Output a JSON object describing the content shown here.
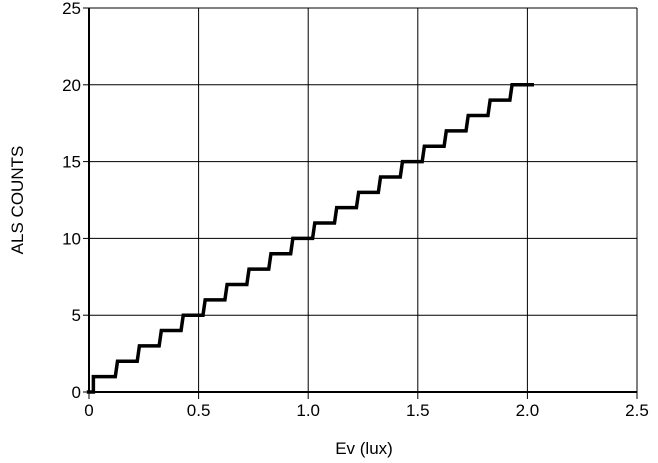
{
  "chart_data": {
    "type": "line",
    "title": "",
    "xlabel": "Ev (lux)",
    "ylabel": "ALS COUNTS",
    "xlim": [
      0,
      2.5
    ],
    "ylim": [
      0,
      25
    ],
    "x_ticks": [
      0,
      0.5,
      1.0,
      1.5,
      2.0,
      2.5
    ],
    "x_tick_labels": [
      "0",
      "0.5",
      "1.0",
      "1.5",
      "2.0",
      "2.5"
    ],
    "y_ticks": [
      0,
      5,
      10,
      15,
      20,
      25
    ],
    "y_tick_labels": [
      "0",
      "5",
      "10",
      "15",
      "20",
      "25"
    ],
    "grid": true,
    "legend": "none",
    "series": [
      {
        "color": "#000000",
        "style": "step",
        "x": [
          -0.01,
          0.02,
          0.02,
          0.12,
          0.13,
          0.22,
          0.23,
          0.32,
          0.33,
          0.42,
          0.43,
          0.52,
          0.53,
          0.62,
          0.63,
          0.72,
          0.73,
          0.82,
          0.83,
          0.92,
          0.93,
          1.02,
          1.03,
          1.12,
          1.13,
          1.22,
          1.23,
          1.32,
          1.33,
          1.42,
          1.43,
          1.52,
          1.53,
          1.62,
          1.63,
          1.72,
          1.73,
          1.82,
          1.83,
          1.92,
          1.93,
          2.03
        ],
        "y": [
          0,
          0,
          1,
          1,
          2,
          2,
          3,
          3,
          4,
          4,
          5,
          5,
          6,
          6,
          7,
          7,
          8,
          8,
          9,
          9,
          10,
          10,
          11,
          11,
          12,
          12,
          13,
          13,
          14,
          14,
          15,
          15,
          16,
          16,
          17,
          17,
          18,
          18,
          19,
          19,
          20,
          20
        ]
      }
    ]
  }
}
